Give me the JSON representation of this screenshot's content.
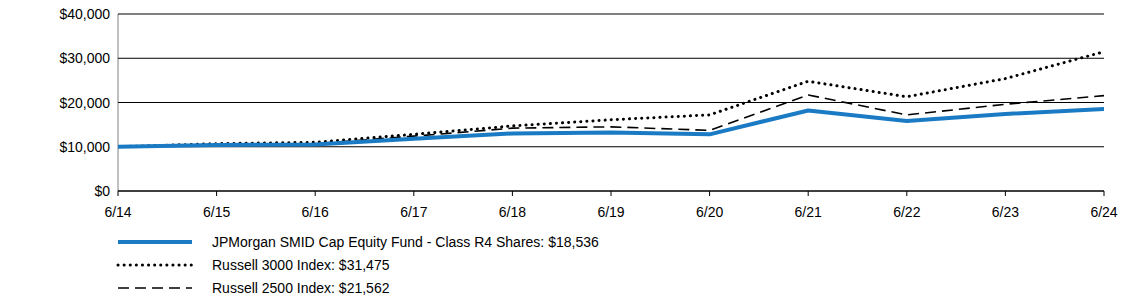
{
  "chart_data": {
    "type": "line",
    "categories": [
      "6/14",
      "6/15",
      "6/16",
      "6/17",
      "6/18",
      "6/19",
      "6/20",
      "6/21",
      "6/22",
      "6/23",
      "6/24"
    ],
    "series": [
      {
        "name": "JPMorgan SMID Cap Equity Fund - Class R4 Shares: $18,536",
        "color": "#1a7bc4",
        "line_style": "solid",
        "values": [
          10000,
          10400,
          10500,
          11800,
          13000,
          13200,
          12800,
          18200,
          15800,
          17400,
          18536
        ]
      },
      {
        "name": "Russell 3000 Index: $31,475",
        "color": "#000000",
        "line_style": "dotted",
        "values": [
          10000,
          10700,
          11000,
          12800,
          14700,
          16100,
          17200,
          24800,
          21300,
          25400,
          31475
        ]
      },
      {
        "name": "Russell 2500 Index: $21,562",
        "color": "#000000",
        "line_style": "dashed",
        "values": [
          10000,
          10500,
          10700,
          12400,
          14200,
          14500,
          13700,
          21700,
          17200,
          19600,
          21562
        ]
      }
    ],
    "ylim": [
      0,
      40000
    ],
    "yticks": [
      {
        "value": 0,
        "label": "$0"
      },
      {
        "value": 10000,
        "label": "$10,000"
      },
      {
        "value": 20000,
        "label": "$20,000"
      },
      {
        "value": 30000,
        "label": "$30,000"
      },
      {
        "value": 40000,
        "label": "$40,000"
      }
    ],
    "grid": true,
    "legend": "bottom"
  }
}
